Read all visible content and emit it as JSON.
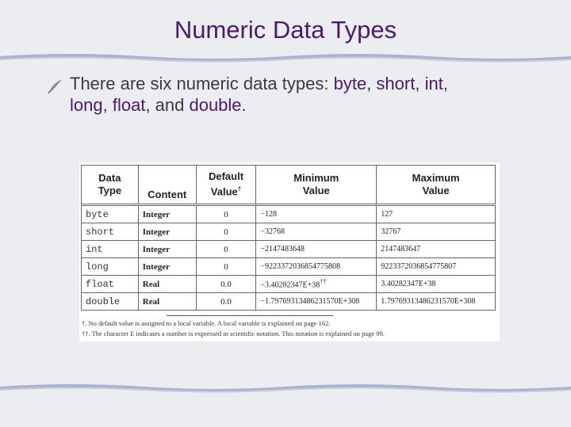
{
  "slide": {
    "title": "Numeric Data Types",
    "bullet_icon": "quill-bullet-icon",
    "bullet": {
      "prefix": "There are six numeric data types: ",
      "kw1": "byte",
      "s1": ", ",
      "kw2": "short",
      "s2": ", ",
      "kw3": "int",
      "s3": ",",
      "kw4": "long",
      "s4": ", ",
      "kw5": "float",
      "s5": ", and ",
      "kw6": "double",
      "s6": "."
    },
    "colors": {
      "title": "#4b1a6e",
      "text": "#3a3a46",
      "wave": "#9aa3c4"
    }
  },
  "table": {
    "headers": [
      {
        "l1": "Data",
        "l2": "Type"
      },
      {
        "l1": "",
        "l2": "Content"
      },
      {
        "l1": "Default",
        "l2": "Value",
        "sup": "†"
      },
      {
        "l1": "Minimum",
        "l2": "Value"
      },
      {
        "l1": "Maximum",
        "l2": "Value"
      }
    ],
    "rows": [
      {
        "type": "byte",
        "content": "Integer",
        "default": "0",
        "min": "−128",
        "max": "127"
      },
      {
        "type": "short",
        "content": "Integer",
        "default": "0",
        "min": "−32768",
        "max": "32767"
      },
      {
        "type": "int",
        "content": "Integer",
        "default": "0",
        "min": "−2147483648",
        "max": "2147483647"
      },
      {
        "type": "long",
        "content": "Integer",
        "default": "0",
        "min": "−9223372036854775808",
        "max": "9223372036854775807"
      },
      {
        "type": "float",
        "content": "Real",
        "default": "0.0",
        "min": "−3.40282347E+38",
        "min_sup": "††",
        "max": "3.40282347E+38"
      },
      {
        "type": "double",
        "content": "Real",
        "default": "0.0",
        "min": "−1.79769313486231570E+308",
        "max": "1.79769313486231570E+308"
      }
    ],
    "footnotes": [
      "†. No default value is assigned to a local variable. A local variable is explained on page 162.",
      "††. The character E indicates a number is expressed in scientific notation. This notation is explained on page 99."
    ]
  }
}
